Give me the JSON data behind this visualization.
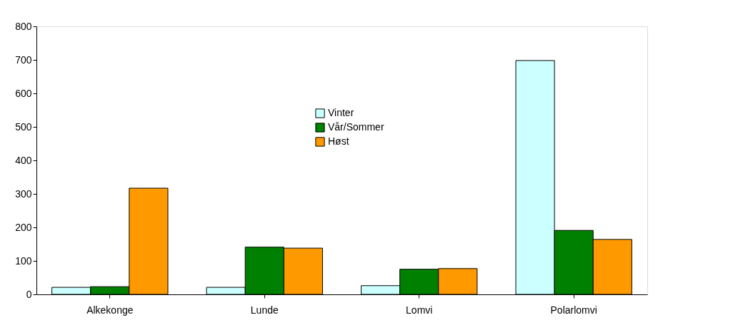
{
  "chart_data": {
    "type": "bar",
    "categories": [
      "Alkekonge",
      "Lunde",
      "Lomvi",
      "Polarlomvi"
    ],
    "series": [
      {
        "name": "Vinter",
        "color": "#ccffff",
        "values": [
          21,
          21,
          26,
          698
        ]
      },
      {
        "name": "Vår/Sommer",
        "color": "#008000",
        "values": [
          23,
          141,
          75,
          191
        ]
      },
      {
        "name": "Høst",
        "color": "#ff9900",
        "values": [
          317,
          138,
          77,
          164
        ]
      }
    ],
    "ylim": [
      0,
      800
    ],
    "yticks": [
      0,
      100,
      200,
      300,
      400,
      500,
      600,
      700,
      800
    ],
    "grid": false,
    "legend": "center"
  }
}
